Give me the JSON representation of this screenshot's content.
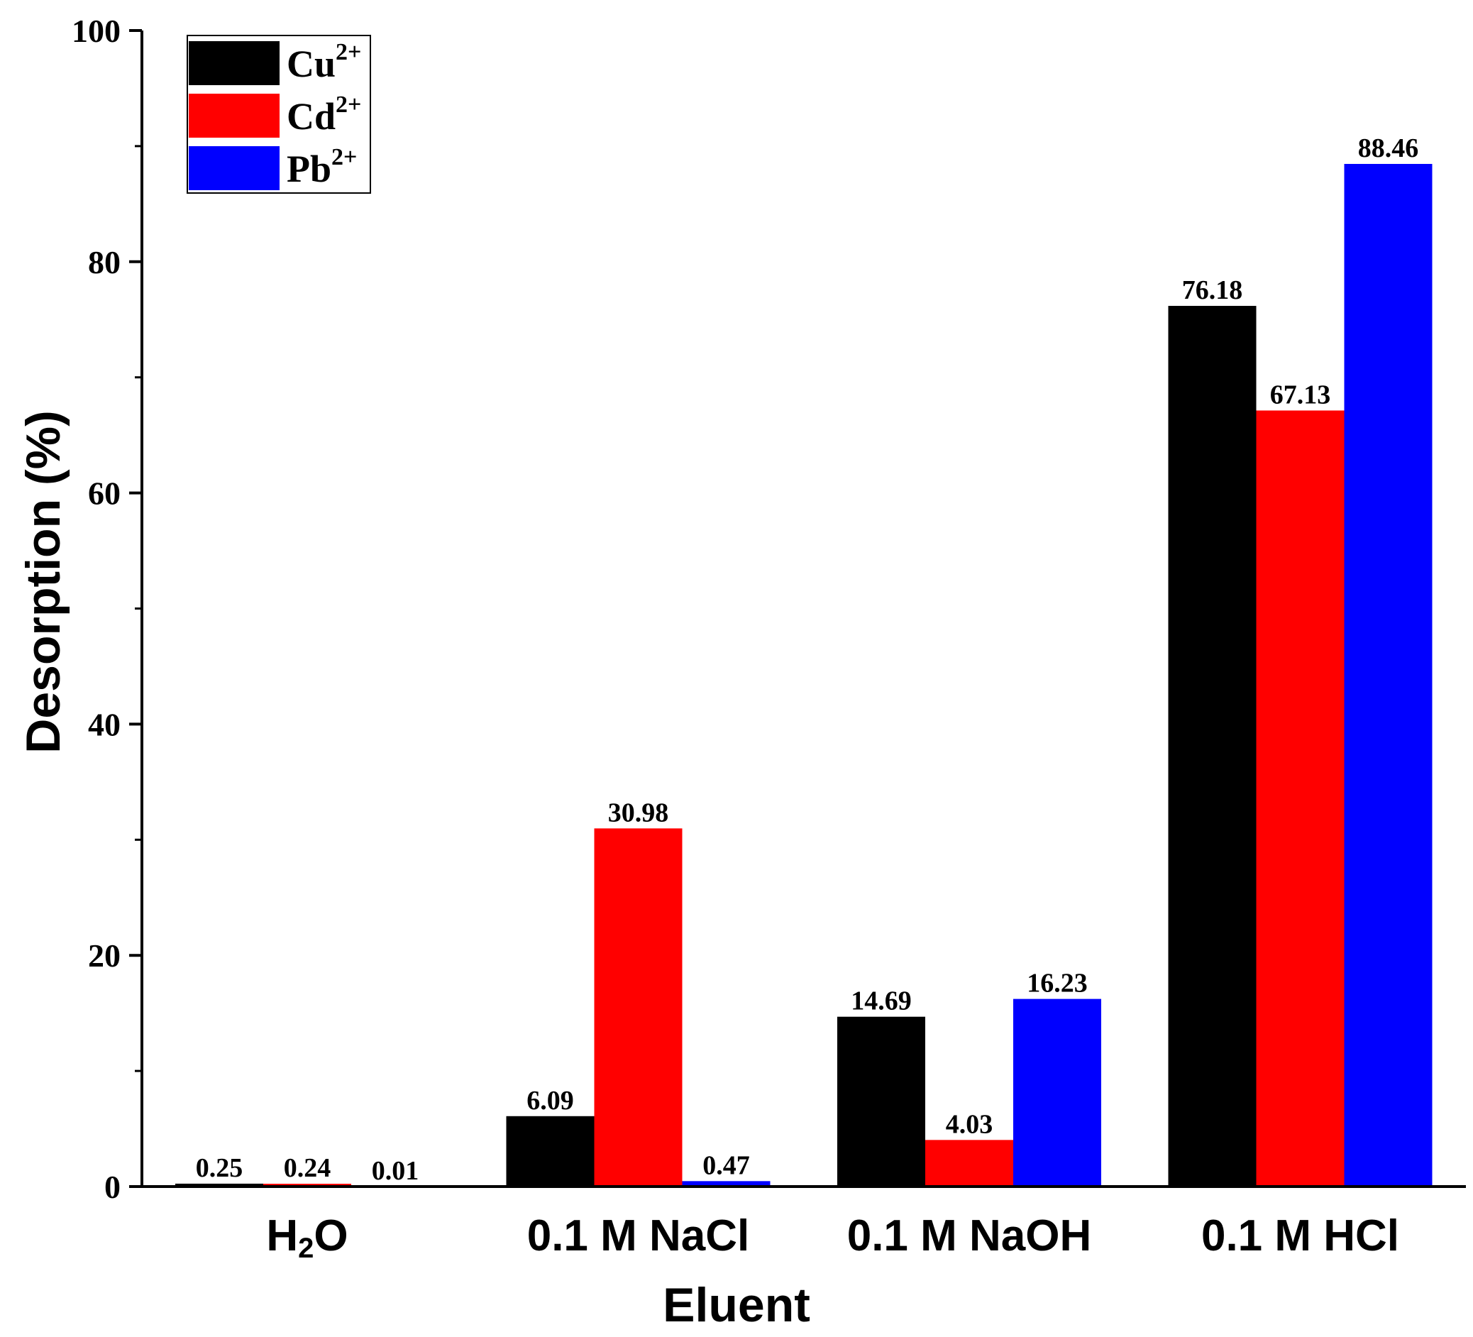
{
  "chart_data": {
    "type": "bar",
    "title": "",
    "xlabel": "Eluent",
    "ylabel": "Desorption (%)",
    "ylim": [
      0,
      100
    ],
    "yticks": [
      "0",
      "20",
      "40",
      "60",
      "80",
      "100"
    ],
    "categories": [
      {
        "main": "H",
        "sub": "2",
        "tail": "O"
      },
      {
        "main": "0.1 M NaCl",
        "sub": "",
        "tail": ""
      },
      {
        "main": "0.1 M NaOH",
        "sub": "",
        "tail": ""
      },
      {
        "main": "0.1 M HCl",
        "sub": "",
        "tail": ""
      }
    ],
    "series": [
      {
        "name": "Cu",
        "sup": "2+",
        "color": "#000000",
        "values": [
          0.25,
          6.09,
          14.69,
          76.18
        ],
        "labels": [
          "0.25",
          "6.09",
          "14.69",
          "76.18"
        ]
      },
      {
        "name": "Cd",
        "sup": "2+",
        "color": "#ff0000",
        "values": [
          0.24,
          30.98,
          4.03,
          67.13
        ],
        "labels": [
          "0.24",
          "30.98",
          "4.03",
          "67.13"
        ]
      },
      {
        "name": "Pb",
        "sup": "2+",
        "color": "#0000ff",
        "values": [
          0.01,
          0.47,
          16.23,
          88.46
        ],
        "labels": [
          "0.01",
          "0.47",
          "16.23",
          "88.46"
        ]
      }
    ],
    "legend_position": "top-left"
  }
}
